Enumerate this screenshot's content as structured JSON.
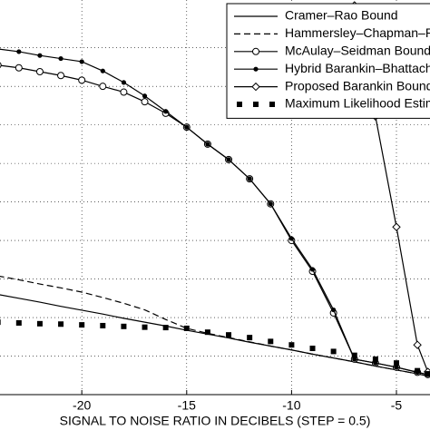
{
  "chart_data": {
    "type": "line",
    "x_label": "SIGNAL TO NOISE RATIO IN DECIBELS (STEP = 0.5)",
    "x": [
      -24,
      -23,
      -22,
      -21,
      -20,
      -19,
      -18,
      -17,
      -16,
      -15,
      -14,
      -13,
      -12,
      -11,
      -10,
      -9,
      -8,
      -7,
      -6,
      -5,
      -4,
      -3.5
    ],
    "xlim": [
      -23.9,
      -3.4
    ],
    "xticks": [
      -20,
      -15,
      -10,
      -5
    ],
    "ylim": [
      0,
      10.24
    ],
    "ygrid": [
      1,
      2,
      3,
      4,
      5,
      6,
      7,
      8,
      9
    ],
    "grid": true,
    "legend": "upper right",
    "series": [
      {
        "name": "Cramer–Rao Bound",
        "color": "#000000",
        "dash": "solid",
        "marker": "none",
        "values": [
          2.6,
          2.5,
          2.4,
          2.29,
          2.19,
          2.09,
          1.98,
          1.88,
          1.78,
          1.67,
          1.57,
          1.47,
          1.36,
          1.26,
          1.16,
          1.05,
          0.95,
          0.85,
          0.74,
          0.64,
          0.54,
          0.48
        ]
      },
      {
        "name": "Hammersley–Chapman–Robbin",
        "color": "#000000",
        "dash": "dashed",
        "marker": "none",
        "values": [
          3.08,
          2.98,
          2.87,
          2.77,
          2.66,
          2.52,
          2.37,
          2.2,
          1.95,
          1.72,
          1.59,
          1.48,
          1.37,
          1.26,
          1.16,
          1.05,
          0.95,
          0.85,
          0.74,
          0.64,
          0.54,
          0.48
        ]
      },
      {
        "name": "McAulay–Seidman Bound",
        "color": "#000000",
        "dash": "solid",
        "marker": "open-circle",
        "values": [
          8.55,
          8.48,
          8.38,
          8.28,
          8.16,
          8.0,
          7.85,
          7.6,
          7.3,
          6.94,
          6.5,
          6.1,
          5.6,
          4.95,
          4.0,
          3.2,
          2.12,
          0.92,
          0.82,
          0.71,
          0.58,
          0.52
        ]
      },
      {
        "name": "Hybrid Barankin–Bhattacharyya",
        "color": "#000000",
        "dash": "solid",
        "marker": "dot",
        "values": [
          8.97,
          8.9,
          8.8,
          8.72,
          8.64,
          8.4,
          8.1,
          7.75,
          7.35,
          6.94,
          6.5,
          6.1,
          5.6,
          4.95,
          4.05,
          3.25,
          2.2,
          0.92,
          0.82,
          0.71,
          0.58,
          0.52
        ]
      },
      {
        "name": "Proposed Barankin Bound Appr",
        "color": "#000000",
        "dash": "solid",
        "marker": "diamond",
        "values": [
          null,
          null,
          null,
          null,
          null,
          null,
          null,
          null,
          null,
          null,
          null,
          null,
          null,
          null,
          null,
          null,
          null,
          10.1,
          7.22,
          4.35,
          1.29,
          0.59
        ]
      },
      {
        "name": "Maximum Likelihood Estimator",
        "color": "#000000",
        "dash": "none",
        "marker": "square",
        "values": [
          1.88,
          1.86,
          1.84,
          1.83,
          1.81,
          1.79,
          1.77,
          1.75,
          1.74,
          1.72,
          1.62,
          1.55,
          1.48,
          1.38,
          1.29,
          1.2,
          1.12,
          1.02,
          0.92,
          0.82,
          0.62,
          0.54
        ]
      }
    ]
  }
}
